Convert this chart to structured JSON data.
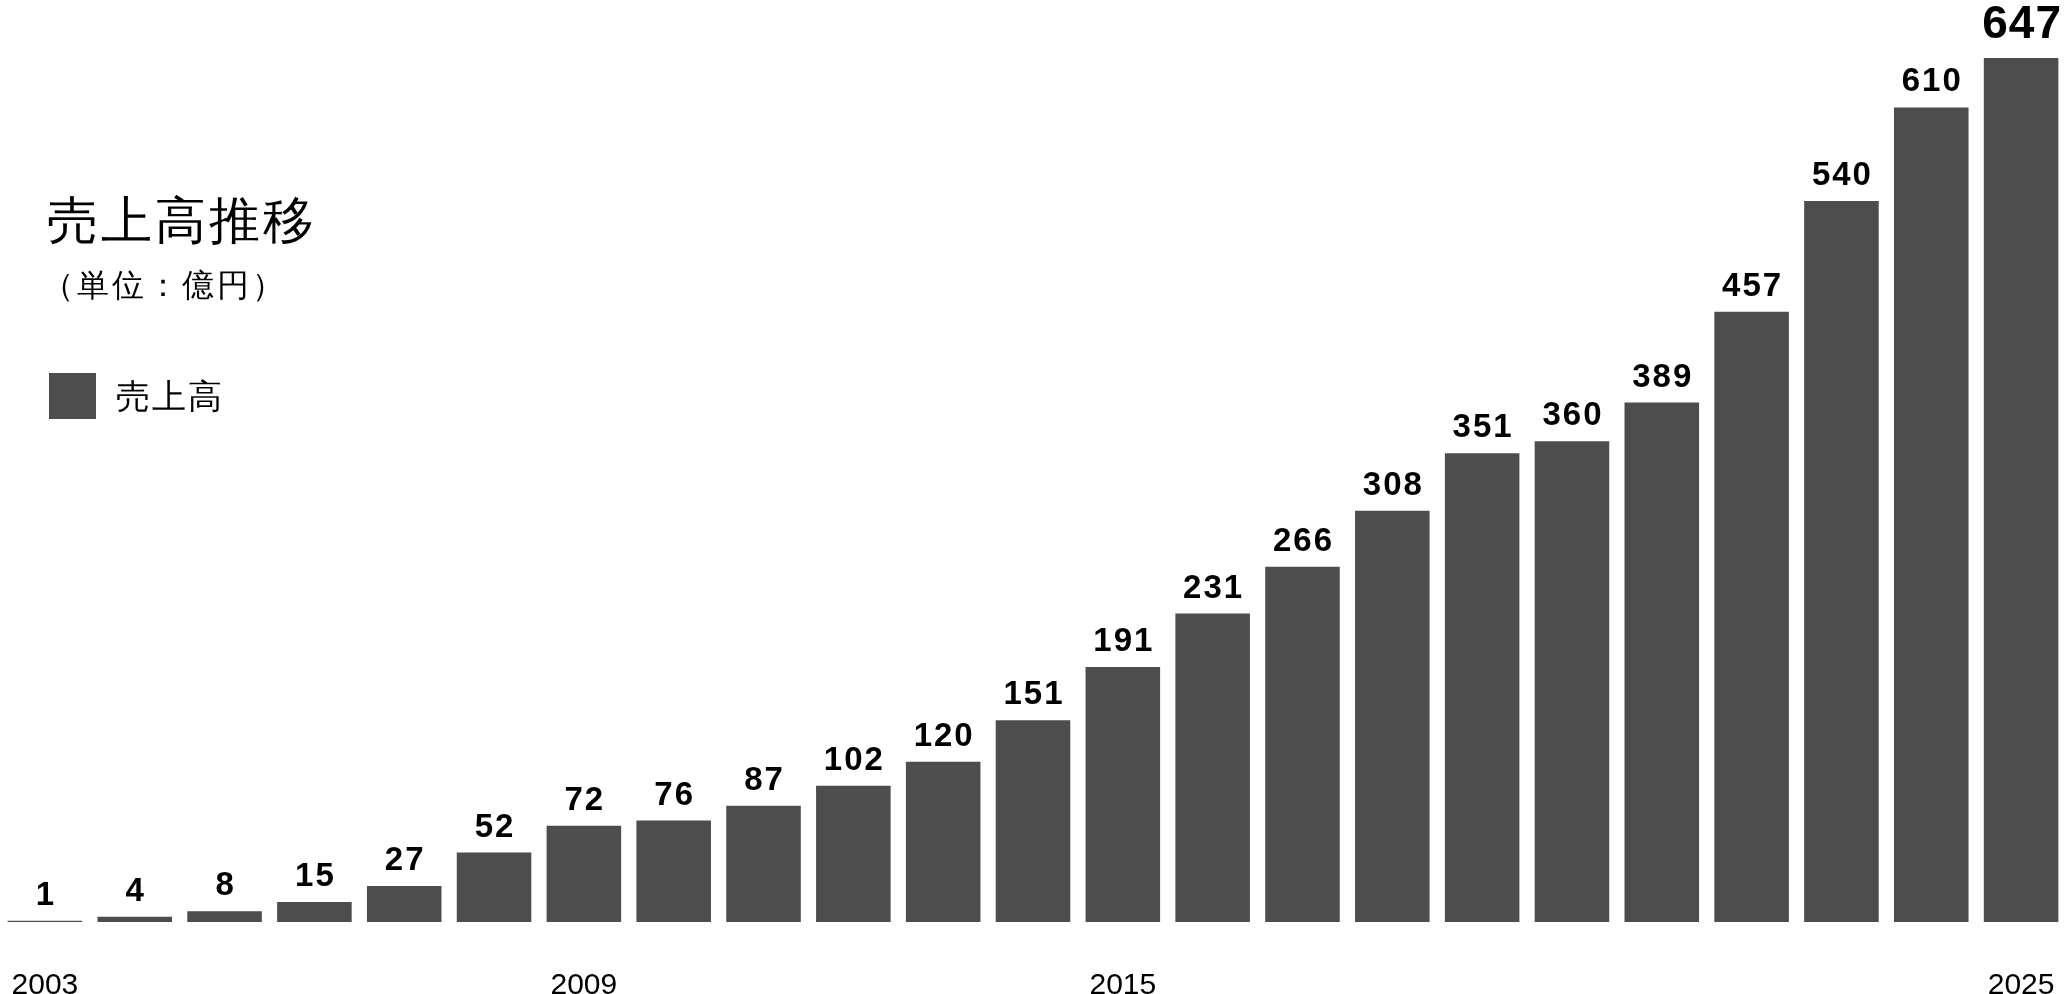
{
  "chart_data": {
    "type": "bar",
    "title": "売上高推移",
    "subtitle": "（単位：億円）",
    "categories": [
      "2003",
      null,
      null,
      null,
      null,
      null,
      "2009",
      null,
      null,
      null,
      null,
      null,
      "2015",
      null,
      null,
      null,
      null,
      null,
      null,
      null,
      null,
      null,
      "2025"
    ],
    "series": [
      {
        "name": "売上高",
        "color": "#4d4d4d",
        "values": [
          1,
          4,
          8,
          15,
          27,
          52,
          72,
          76,
          87,
          102,
          120,
          151,
          191,
          231,
          266,
          308,
          351,
          360,
          389,
          457,
          540,
          610,
          647
        ]
      }
    ],
    "data_labels": true,
    "legend": "top left"
  }
}
